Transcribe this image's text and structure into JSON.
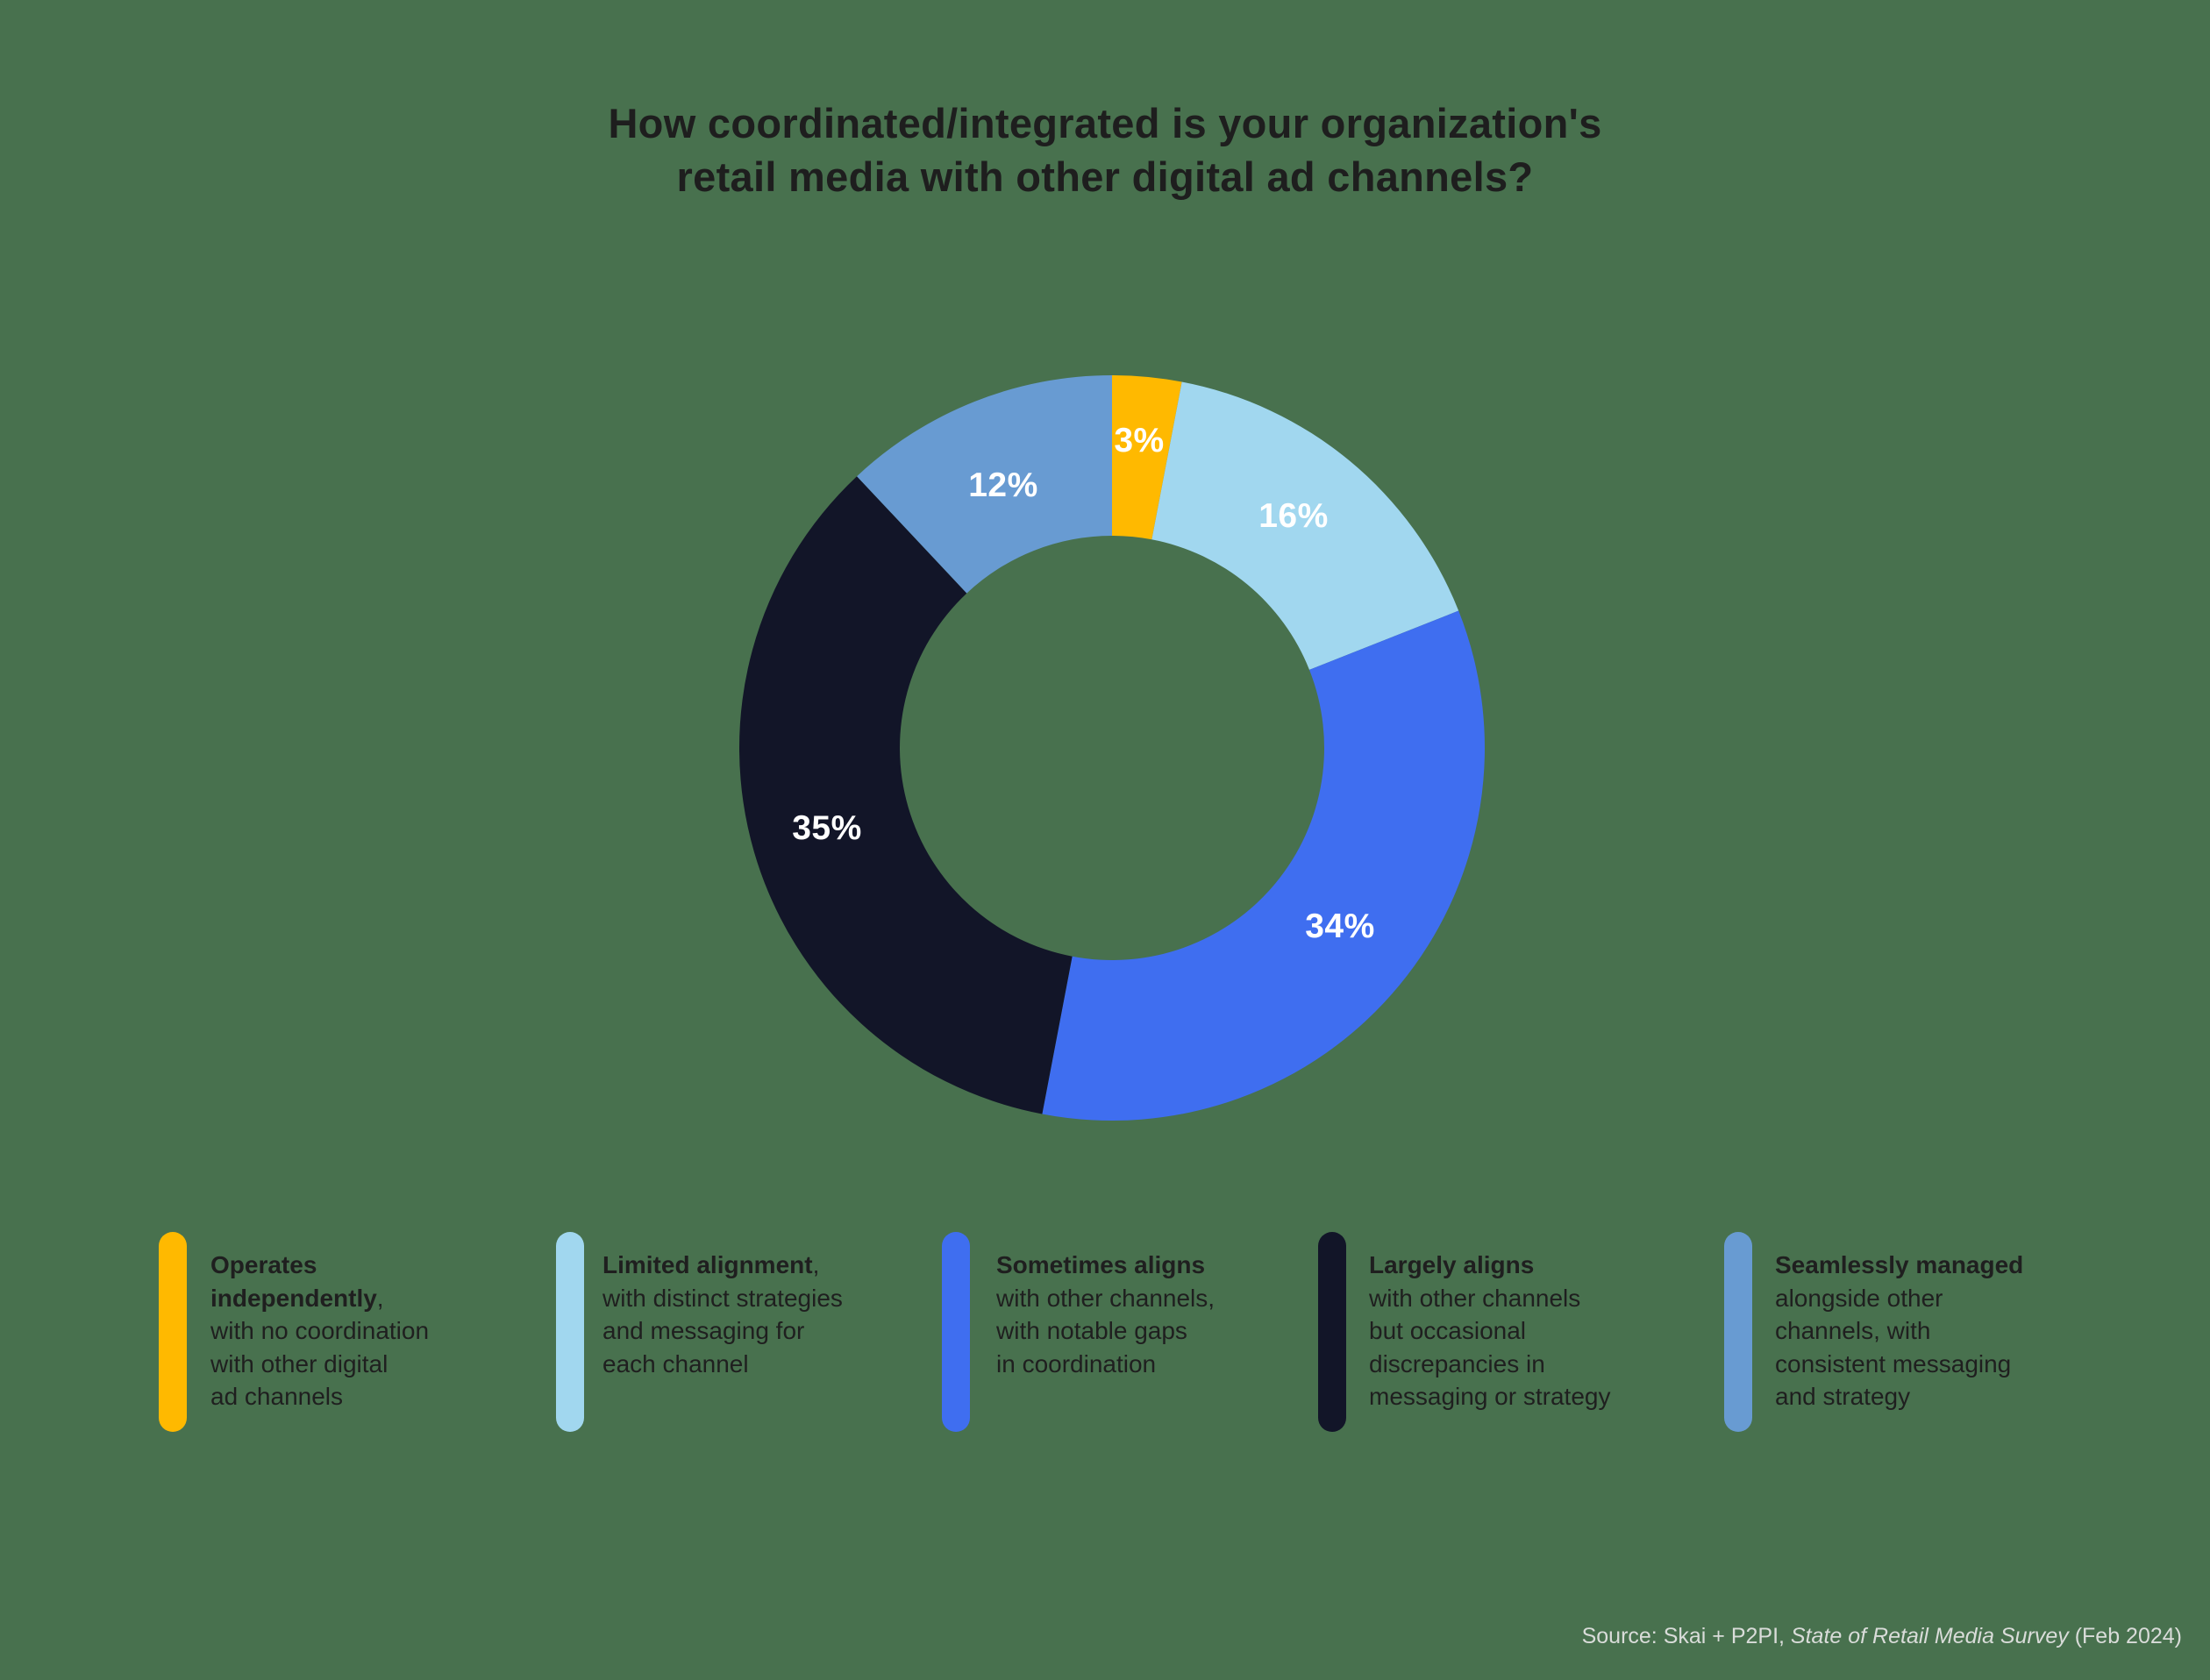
{
  "title": {
    "line1": "How coordinated/integrated is your organization's",
    "line2": "retail media with other digital ad channels?"
  },
  "chart_data": {
    "type": "pie",
    "subtype": "donut",
    "title": "How coordinated/integrated is your organization's retail media with other digital ad channels?",
    "start_angle_deg": 0,
    "direction": "clockwise",
    "categories": [
      "Operates independently",
      "Limited alignment",
      "Sometimes aligns",
      "Largely aligns",
      "Seamlessly managed"
    ],
    "values": [
      3,
      16,
      34,
      35,
      12
    ],
    "labels": [
      "3%",
      "16%",
      "34%",
      "35%",
      "12%"
    ],
    "colors": [
      "#ffb900",
      "#a1d7ef",
      "#3f6ef0",
      "#121528",
      "#689bd2"
    ],
    "unit": "%",
    "legend_position": "bottom"
  },
  "segments": [
    {
      "label": "3%",
      "color": "#ffb900"
    },
    {
      "label": "16%",
      "color": "#a1d7ef"
    },
    {
      "label": "34%",
      "color": "#3f6ef0"
    },
    {
      "label": "35%",
      "color": "#121528"
    },
    {
      "label": "12%",
      "color": "#689bd2"
    }
  ],
  "legend": [
    {
      "bold": "Operates independently",
      "bold_lines": [
        "Operates",
        "independently"
      ],
      "punct": ",",
      "rest_lines": [
        "with no coordination",
        "with other digital",
        "ad channels"
      ],
      "color": "#ffb900"
    },
    {
      "bold": "Limited alignment",
      "bold_lines": [
        "Limited alignment"
      ],
      "punct": ",",
      "rest_lines": [
        "with distinct strategies",
        "and messaging for",
        "each channel"
      ],
      "color": "#a1d7ef"
    },
    {
      "bold": "Sometimes aligns",
      "bold_lines": [
        "Sometimes aligns"
      ],
      "punct": "",
      "rest_lines": [
        "with other channels,",
        "with notable gaps",
        "in coordination"
      ],
      "color": "#3f6ef0"
    },
    {
      "bold": "Largely aligns",
      "bold_lines": [
        "Largely aligns"
      ],
      "punct": "",
      "rest_lines": [
        "with other channels",
        "but occasional",
        "discrepancies in",
        "messaging or strategy"
      ],
      "color": "#121528"
    },
    {
      "bold": "Seamlessly managed",
      "bold_lines": [
        "Seamlessly managed"
      ],
      "punct": "",
      "rest_lines": [
        "alongside other",
        "channels, with",
        "consistent messaging",
        "and strategy"
      ],
      "color": "#689bd2"
    }
  ],
  "source": {
    "prefix": "Source: Skai + P2PI, ",
    "italic": "State of Retail Media Survey",
    "suffix": " (Feb 2024)"
  },
  "colors": {
    "background": "#48714e",
    "text": "#1f1f1f",
    "source_text": "#d9dcd9"
  }
}
